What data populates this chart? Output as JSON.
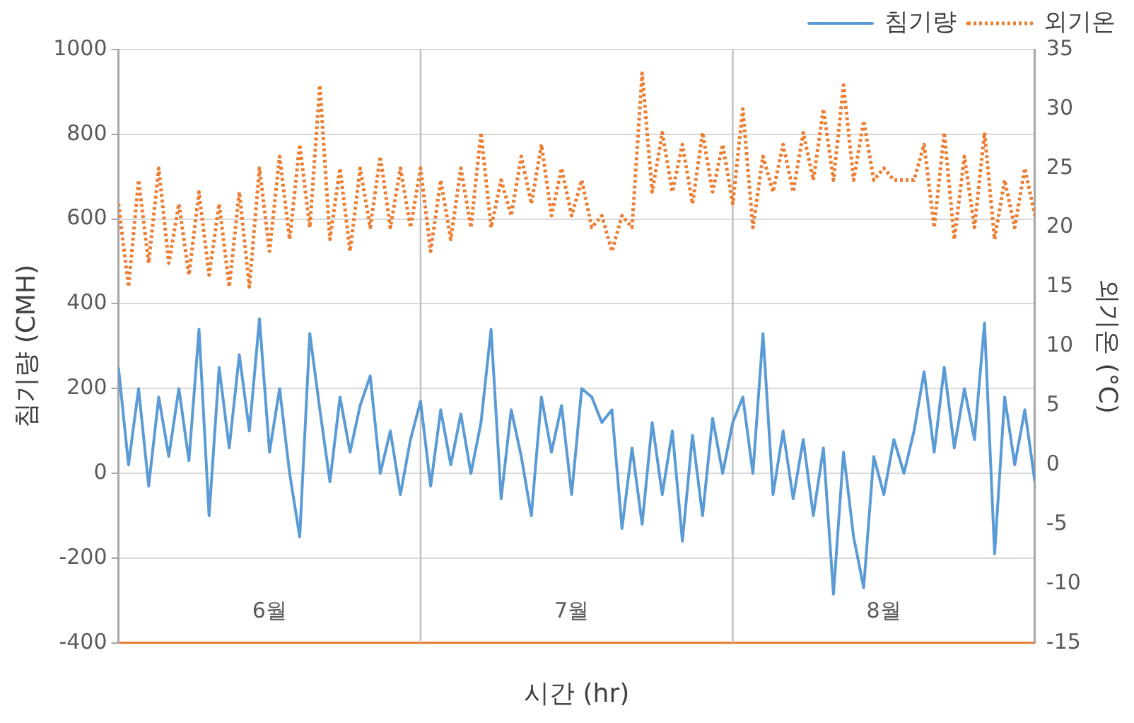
{
  "chart_data": {
    "type": "line",
    "xlabel": "시간 (hr)",
    "ylabel": "침기량 (CMH)",
    "y2label": "외기온 (°C)",
    "x": [
      "--06-01",
      "--06-02",
      "--06-03",
      "--06-04",
      "--06-05",
      "--06-06",
      "--06-07",
      "--06-08",
      "--06-09",
      "--06-10",
      "--06-11",
      "--06-12",
      "--06-13",
      "--06-14",
      "--06-15",
      "--06-16",
      "--06-17",
      "--06-18",
      "--06-19",
      "--06-20",
      "--06-21",
      "--06-22",
      "--06-23",
      "--06-24",
      "--06-25",
      "--06-26",
      "--06-27",
      "--06-28",
      "--06-29",
      "--06-30",
      "--07-01",
      "--07-02",
      "--07-03",
      "--07-04",
      "--07-05",
      "--07-06",
      "--07-07",
      "--07-08",
      "--07-09",
      "--07-10",
      "--07-11",
      "--07-12",
      "--07-13",
      "--07-14",
      "--07-15",
      "--07-16",
      "--07-17",
      "--07-18",
      "--07-19",
      "--07-20",
      "--07-21",
      "--07-22",
      "--07-23",
      "--07-24",
      "--07-25",
      "--07-26",
      "--07-27",
      "--07-28",
      "--07-29",
      "--07-30",
      "--07-31",
      "--08-01",
      "--08-02",
      "--08-03",
      "--08-04",
      "--08-05",
      "--08-06",
      "--08-07",
      "--08-08",
      "--08-09",
      "--08-10",
      "--08-11",
      "--08-12",
      "--08-13",
      "--08-14",
      "--08-15",
      "--08-16",
      "--08-17",
      "--08-18",
      "--08-19",
      "--08-20",
      "--08-21",
      "--08-22",
      "--08-23",
      "--08-24",
      "--08-25",
      "--08-26",
      "--08-27",
      "--08-28",
      "--08-29",
      "--08-30",
      "--08-31"
    ],
    "xlim": [
      "--06-01",
      "--08-31"
    ],
    "xticks": [
      {
        "value": "--06-16",
        "label": "6월"
      },
      {
        "value": "--07-16",
        "label": "7월"
      },
      {
        "value": "--08-16",
        "label": "8월"
      }
    ],
    "ylim": [
      -400,
      1000
    ],
    "yticks": [
      -400,
      -200,
      0,
      200,
      400,
      600,
      800,
      1000
    ],
    "y2lim": [
      -15,
      35
    ],
    "y2ticks": [
      -15,
      -10,
      -5,
      0,
      5,
      10,
      15,
      20,
      25,
      30,
      35
    ],
    "grid": "y",
    "legend": "top right",
    "marker": "none",
    "ref_lines": [
      {
        "axis": "x",
        "value": "--07-01",
        "color": "#bfbfbf"
      },
      {
        "axis": "x",
        "value": "--08-01",
        "color": "#bfbfbf"
      }
    ],
    "series": [
      {
        "name": "침기량",
        "color": "#5b9bd5",
        "line_style": "solid",
        "values": [
          250,
          20,
          200,
          -30,
          180,
          40,
          200,
          30,
          340,
          -100,
          250,
          60,
          280,
          100,
          365,
          50,
          200,
          0,
          -150,
          330,
          150,
          -20,
          180,
          50,
          160,
          230,
          0,
          100,
          -50,
          80,
          170,
          -30,
          150,
          20,
          140,
          0,
          120,
          340,
          -60,
          150,
          40,
          -100,
          180,
          50,
          160,
          -50,
          200,
          180,
          120,
          150,
          -130,
          60,
          -120,
          120,
          -50,
          100,
          -160,
          90,
          -100,
          130,
          0,
          120,
          180,
          0,
          330,
          -50,
          100,
          -60,
          80,
          -100,
          60,
          -285,
          50,
          -150,
          -270,
          40,
          -50,
          80,
          0,
          100,
          240,
          50,
          250,
          60,
          200,
          80,
          355,
          -190,
          180,
          20,
          150,
          -20
        ]
      },
      {
        "name": "외기온",
        "color": "#ed7d31",
        "line_style": "dotted",
        "axis": "y2",
        "values": [
          22,
          15,
          24,
          17,
          25,
          17,
          22,
          16,
          23,
          16,
          22,
          15,
          23,
          15,
          25,
          18,
          26,
          19,
          27,
          20,
          32,
          19,
          25,
          18,
          25,
          20,
          26,
          20,
          25,
          20,
          25,
          18,
          24,
          19,
          25,
          20,
          28,
          20,
          24,
          21,
          26,
          22,
          27,
          21,
          25,
          21,
          24,
          20,
          21,
          18,
          21,
          20,
          33,
          23,
          28,
          23,
          27,
          22,
          28,
          23,
          27,
          22,
          30,
          20,
          26,
          23,
          27,
          23,
          28,
          24,
          30,
          24,
          32,
          24,
          29,
          24,
          25,
          24,
          24,
          24,
          27,
          20,
          28,
          19,
          26,
          20,
          28,
          19,
          24,
          20,
          25,
          21
        ]
      }
    ]
  }
}
